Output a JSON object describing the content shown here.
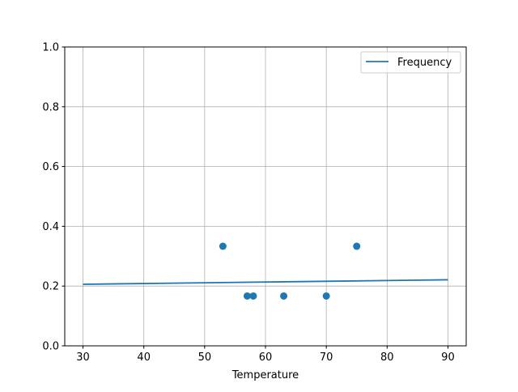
{
  "chart_data": {
    "type": "scatter",
    "title": "",
    "xlabel": "Temperature",
    "ylabel": "",
    "xlim": [
      27,
      93
    ],
    "ylim": [
      0,
      1.0
    ],
    "xticks": [
      30,
      40,
      50,
      60,
      70,
      80,
      90
    ],
    "yticks": [
      "0.0",
      "0.2",
      "0.4",
      "0.6",
      "0.8",
      "1.0"
    ],
    "grid": true,
    "legend_position": "top-right",
    "color": "#1f77b4",
    "scatter_points": [
      {
        "x": 53,
        "y": 0.3333
      },
      {
        "x": 57,
        "y": 0.1667
      },
      {
        "x": 58,
        "y": 0.1667
      },
      {
        "x": 63,
        "y": 0.1667
      },
      {
        "x": 70,
        "y": 0.1667
      },
      {
        "x": 75,
        "y": 0.3333
      }
    ],
    "series": [
      {
        "name": "Frequency",
        "type": "line",
        "x": [
          30,
          90
        ],
        "y": [
          0.206,
          0.221
        ]
      }
    ]
  }
}
